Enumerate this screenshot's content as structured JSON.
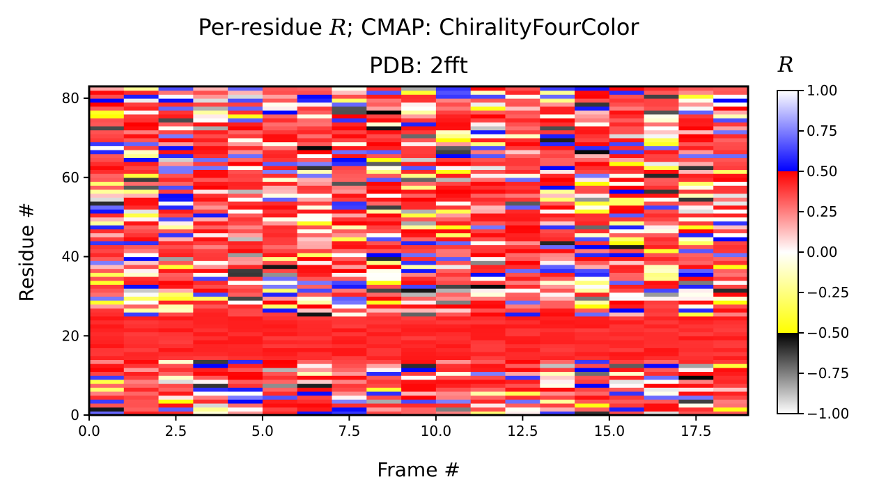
{
  "chart_data": {
    "type": "heatmap",
    "title_prefix": "Per-residue ",
    "title_symbol": "R",
    "title_suffix": "; CMAP: ChiralityFourColor",
    "subtitle": "PDB: 2fft",
    "xlabel": "Frame #",
    "ylabel": "Residue #",
    "colorbar_label": "R",
    "x_range": [
      0,
      19
    ],
    "y_range": [
      0,
      83
    ],
    "n_frames": 19,
    "n_residues": 83,
    "x_ticks": [
      "0.0",
      "2.5",
      "5.0",
      "7.5",
      "10.0",
      "12.5",
      "15.0",
      "17.5"
    ],
    "x_tick_values": [
      0,
      2.5,
      5,
      7.5,
      10,
      12.5,
      15,
      17.5
    ],
    "y_ticks": [
      "0",
      "20",
      "40",
      "60",
      "80"
    ],
    "y_tick_values": [
      0,
      20,
      40,
      60,
      80
    ],
    "colorbar_ticks": [
      "1.00",
      "0.75",
      "0.50",
      "0.25",
      "0.00",
      "−0.25",
      "−0.50",
      "−0.75",
      "−1.00"
    ],
    "colorbar_tick_values": [
      1,
      0.75,
      0.5,
      0.25,
      0,
      -0.25,
      -0.5,
      -0.75,
      -1
    ],
    "vmin": -1,
    "vmax": 1,
    "colormap_segments": [
      {
        "from": -1.0,
        "to": -0.5,
        "start": "#ffffff",
        "end": "#000000"
      },
      {
        "from": -0.5,
        "to": 0.0,
        "start": "#ffff00",
        "end": "#ffffff"
      },
      {
        "from": 0.0,
        "to": 0.5,
        "start": "#ffffff",
        "end": "#ff0000"
      },
      {
        "from": 0.5,
        "to": 1.0,
        "start": "#0000ff",
        "end": "#ffffff"
      }
    ],
    "band_residues_mostly_red": [
      14,
      24
    ],
    "cell_values_note": "per-cell values are a dense 19x83 grid; approximated as mostly positive (red) values with scattered negative and >0.5 entries"
  }
}
